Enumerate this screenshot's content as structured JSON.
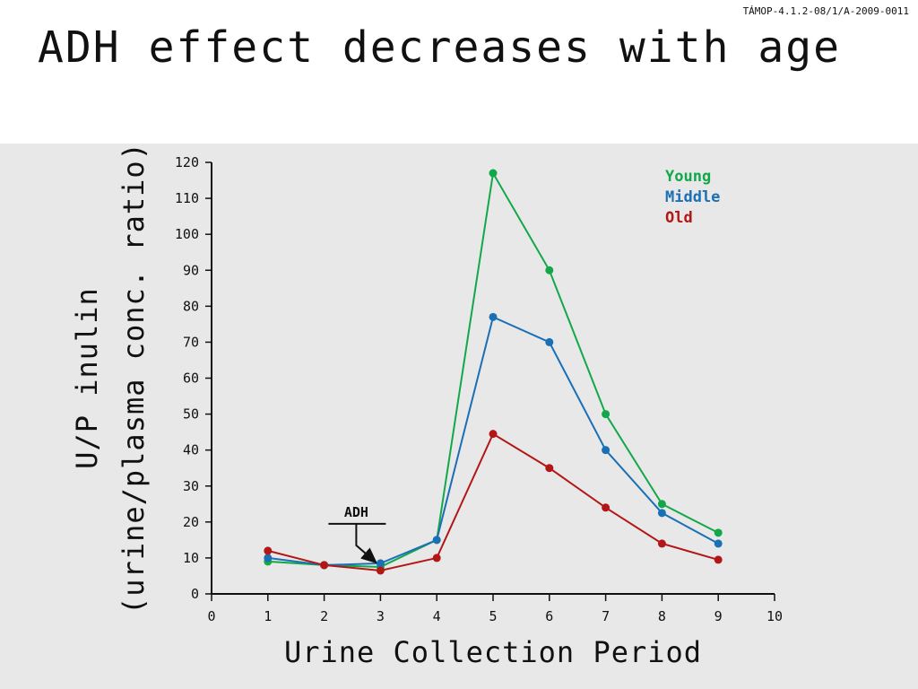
{
  "header": {
    "code": "TÁMOP-4.1.2-08/1/A-2009-0011",
    "title": "ADH effect decreases with age"
  },
  "colors": {
    "young": "#12a84a",
    "middle": "#1a6fb5",
    "old": "#b31616",
    "panel_bg": "#e8e8e8"
  },
  "chart_data": {
    "type": "line",
    "title": "ADH effect decreases with age",
    "xlabel": "Urine Collection Period",
    "ylabel_lines": [
      "U/P inulin",
      "(urine/plasma conc. ratio)"
    ],
    "xlim": [
      0,
      10
    ],
    "ylim": [
      0,
      120
    ],
    "x_ticks": [
      0,
      1,
      2,
      3,
      4,
      5,
      6,
      7,
      8,
      9,
      10
    ],
    "y_ticks": [
      0,
      10,
      20,
      30,
      40,
      50,
      60,
      70,
      80,
      90,
      100,
      110,
      120
    ],
    "x_tick_labels": [
      "0",
      "1",
      "2",
      "3",
      "4",
      "5",
      "6",
      "7",
      "8",
      "9",
      "10"
    ],
    "y_tick_labels": [
      "0",
      "10",
      "20",
      "30",
      "40",
      "50",
      "60",
      "70",
      "80",
      "90",
      "100",
      "110",
      "120"
    ],
    "grid": false,
    "legend_position": "top-right",
    "x": [
      1,
      2,
      3,
      4,
      5,
      6,
      7,
      8,
      9
    ],
    "series": [
      {
        "name": "Young",
        "color": "#12a84a",
        "values": [
          9,
          8,
          7.5,
          15,
          117,
          90,
          50,
          25,
          17
        ]
      },
      {
        "name": "Middle",
        "color": "#1a6fb5",
        "values": [
          10,
          8,
          8.5,
          15,
          77,
          70,
          40,
          22.5,
          14
        ]
      },
      {
        "name": "Old",
        "color": "#b31616",
        "values": [
          12,
          8,
          6.5,
          10,
          44.5,
          35,
          24,
          14,
          9.5
        ]
      }
    ],
    "annotation": {
      "text": "ADH",
      "x": 3,
      "y": 8
    }
  }
}
